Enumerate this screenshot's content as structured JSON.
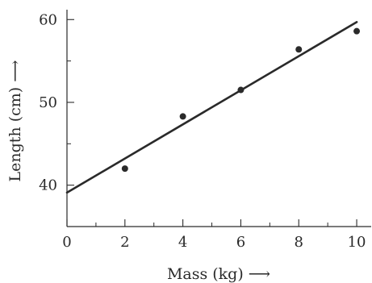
{
  "chart_data": {
    "type": "scatter",
    "title": "",
    "xlabel": "Mass (kg) ⟶",
    "ylabel": "Length (cm) ⟶",
    "xlim": [
      0,
      10.5
    ],
    "ylim": [
      35,
      61
    ],
    "x_ticks": [
      0,
      2,
      4,
      6,
      8,
      10
    ],
    "y_ticks": [
      40,
      50,
      60
    ],
    "x_tick_labels": [
      "0",
      "2",
      "4",
      "6",
      "8",
      "10"
    ],
    "y_tick_labels": [
      "40",
      "50",
      "60"
    ],
    "x_minor_ticks": [
      1,
      3,
      5,
      7,
      9
    ],
    "y_minor_ticks": [
      45,
      55
    ],
    "grid": false,
    "points": [
      {
        "x": 2,
        "y": 42.0
      },
      {
        "x": 4,
        "y": 48.3
      },
      {
        "x": 6,
        "y": 51.5
      },
      {
        "x": 8,
        "y": 56.4
      },
      {
        "x": 10,
        "y": 58.6
      }
    ],
    "fit_line": {
      "x": [
        0,
        10
      ],
      "y": [
        39.1,
        59.7
      ]
    },
    "colors": {
      "ink": "#2a2a2a",
      "background": "#ffffff"
    }
  }
}
